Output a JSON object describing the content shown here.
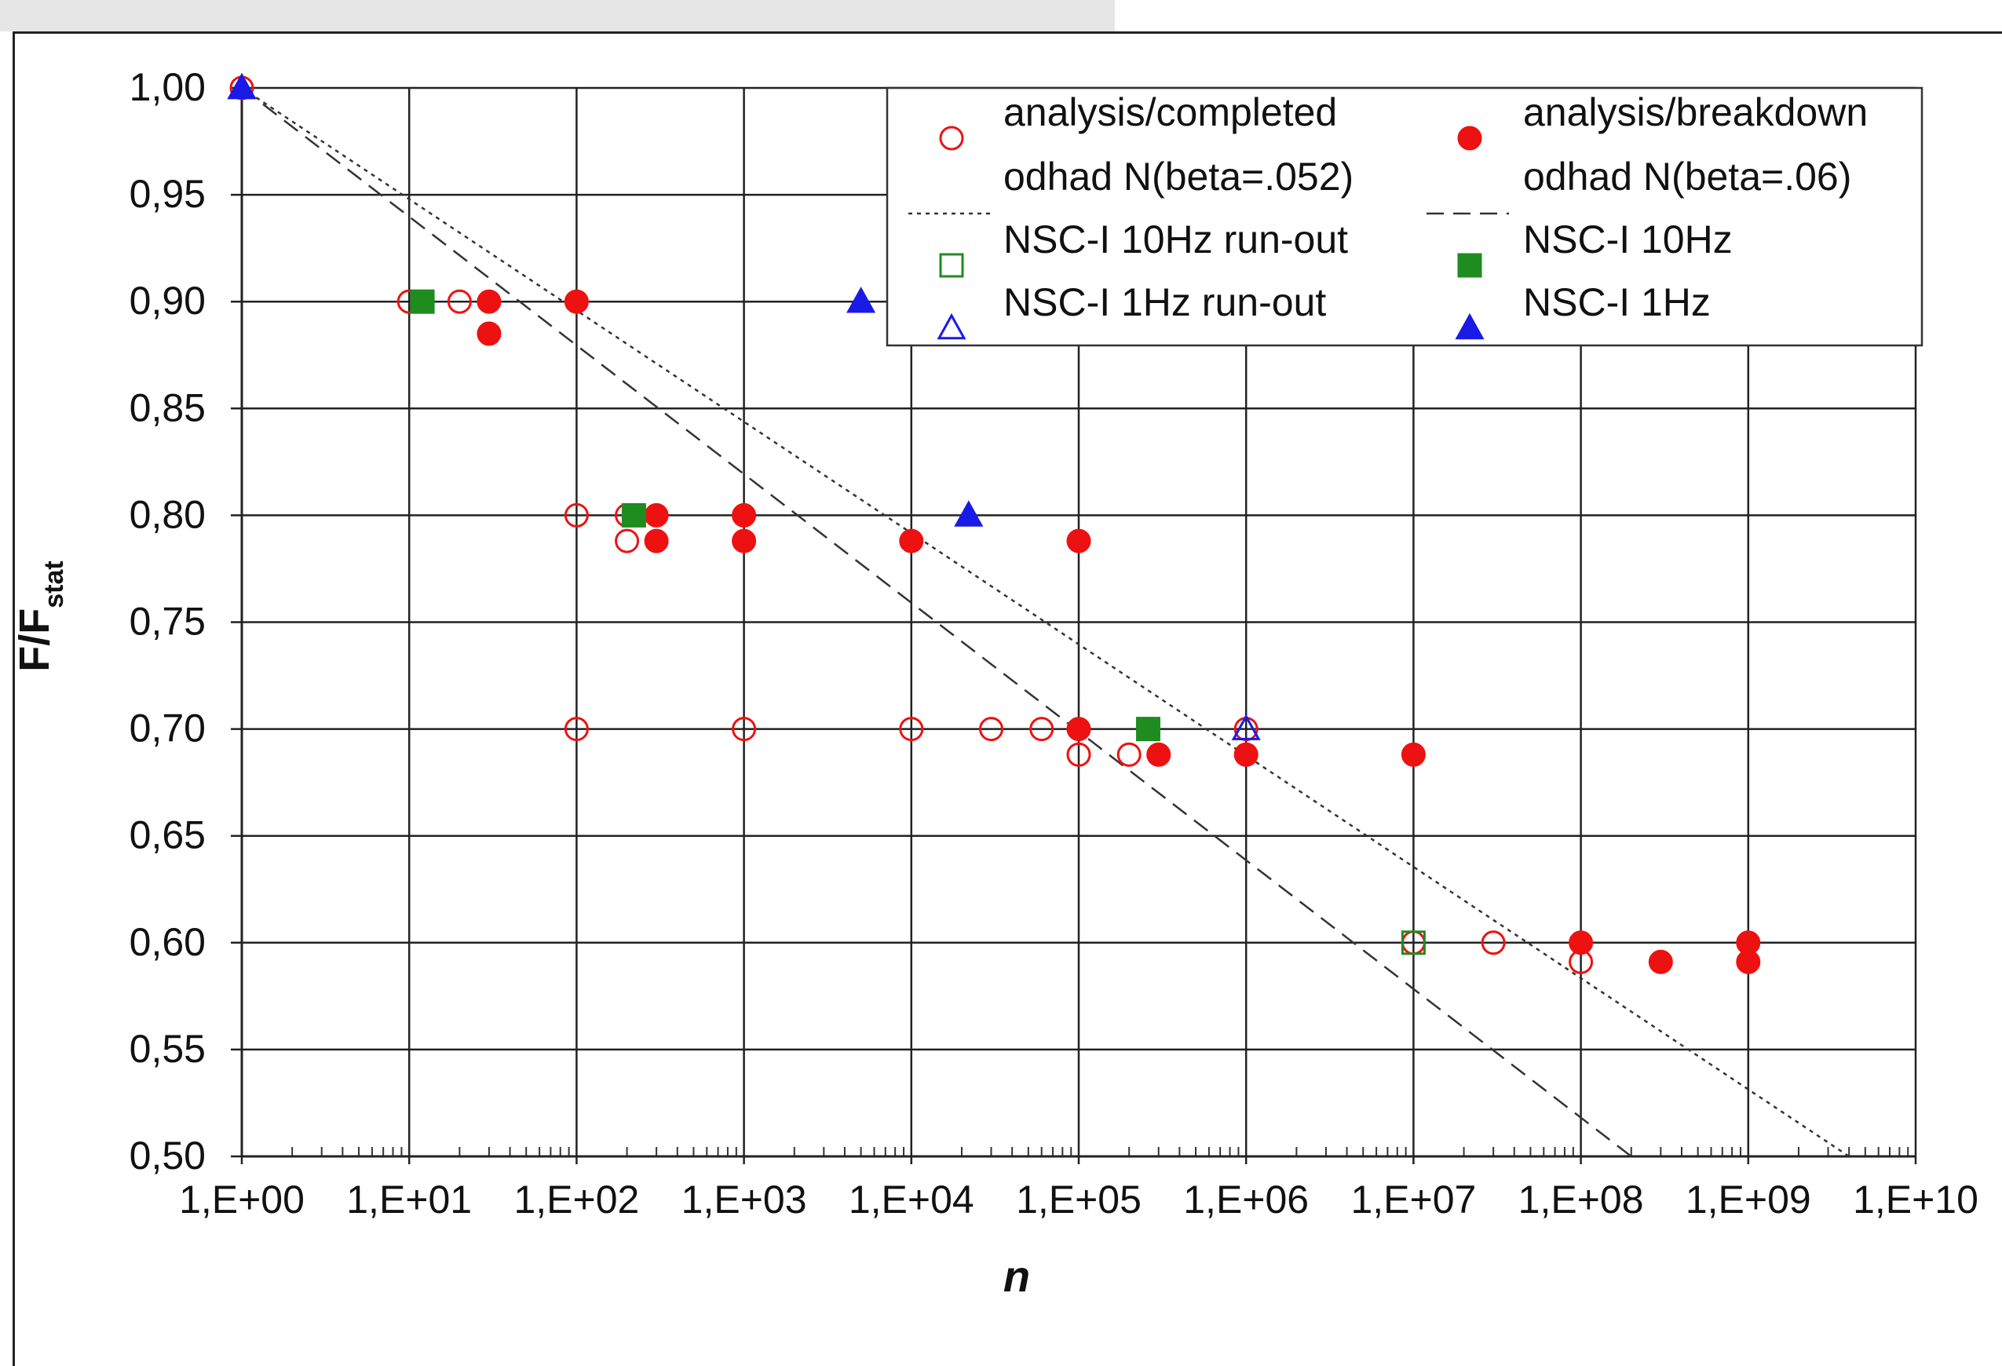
{
  "chart_data": {
    "type": "scatter",
    "xlabel": "n",
    "ylabel_main": "F/F",
    "ylabel_sub": "stat",
    "x_scale": "log",
    "xlim": [
      1,
      10000000000
    ],
    "ylim": [
      0.5,
      1.0
    ],
    "grid": true,
    "legend_position": "top-right",
    "x_tick_values": [
      1,
      10,
      100,
      1000,
      10000,
      100000,
      1000000,
      10000000,
      100000000,
      1000000000,
      10000000000
    ],
    "x_tick_labels": [
      "1,E+00",
      "1,E+01",
      "1,E+02",
      "1,E+03",
      "1,E+04",
      "1,E+05",
      "1,E+06",
      "1,E+07",
      "1,E+08",
      "1,E+09",
      "1,E+10"
    ],
    "y_tick_values": [
      0.5,
      0.55,
      0.6,
      0.65,
      0.7,
      0.75,
      0.8,
      0.85,
      0.9,
      0.95,
      1.0
    ],
    "y_tick_labels": [
      "0,50",
      "0,55",
      "0,60",
      "0,65",
      "0,70",
      "0,75",
      "0,80",
      "0,85",
      "0,90",
      "0,95",
      "1,00"
    ],
    "series": [
      {
        "name": "analysis/completed",
        "marker": "circle-open",
        "color": "#ee1111",
        "points": [
          [
            1,
            1.0
          ],
          [
            10,
            0.9
          ],
          [
            20,
            0.9
          ],
          [
            100,
            0.8
          ],
          [
            200,
            0.8
          ],
          [
            200,
            0.788
          ],
          [
            100,
            0.7
          ],
          [
            1000,
            0.7
          ],
          [
            10000,
            0.7
          ],
          [
            30000,
            0.7
          ],
          [
            60000,
            0.7
          ],
          [
            100000,
            0.688
          ],
          [
            200000,
            0.688
          ],
          [
            1000000,
            0.7
          ],
          [
            10000000,
            0.6
          ],
          [
            30000000,
            0.6
          ],
          [
            100000000,
            0.591
          ]
        ]
      },
      {
        "name": "analysis/breakdown",
        "marker": "circle-filled",
        "color": "#ee1111",
        "points": [
          [
            30,
            0.9
          ],
          [
            30,
            0.885
          ],
          [
            100,
            0.9
          ],
          [
            300,
            0.8
          ],
          [
            300,
            0.788
          ],
          [
            1000,
            0.8
          ],
          [
            1000,
            0.788
          ],
          [
            10000,
            0.788
          ],
          [
            100000,
            0.788
          ],
          [
            100000,
            0.7
          ],
          [
            300000,
            0.688
          ],
          [
            1000000,
            0.688
          ],
          [
            10000000,
            0.688
          ],
          [
            100000000,
            0.6
          ],
          [
            300000000,
            0.591
          ],
          [
            1000000000,
            0.6
          ],
          [
            1000000000,
            0.591
          ]
        ]
      },
      {
        "name": "odhad N(beta=.052)",
        "marker": "line-dotted",
        "color": "#333333",
        "beta": 0.052,
        "line": [
          [
            1,
            1.0
          ],
          [
            4000000000,
            0.5
          ]
        ]
      },
      {
        "name": "odhad N(beta=.06)",
        "marker": "line-dashed",
        "color": "#333333",
        "beta": 0.06,
        "line": [
          [
            1,
            1.0
          ],
          [
            200000000,
            0.5
          ]
        ]
      },
      {
        "name": "NSC-I 10Hz run-out",
        "marker": "square-open",
        "color": "#1e8c1e",
        "points": [
          [
            10000000,
            0.6
          ]
        ]
      },
      {
        "name": "NSC-I 10Hz",
        "marker": "square-filled",
        "color": "#1e8c1e",
        "points": [
          [
            12,
            0.9
          ],
          [
            220,
            0.8
          ],
          [
            260000,
            0.7
          ]
        ]
      },
      {
        "name": "NSC-I 1Hz run-out",
        "marker": "triangle-open",
        "color": "#1a1ae6",
        "points": [
          [
            1,
            1.0
          ],
          [
            1000000,
            0.7
          ]
        ]
      },
      {
        "name": "NSC-I 1Hz",
        "marker": "triangle-filled",
        "color": "#1a1ae6",
        "points": [
          [
            1,
            1.0
          ],
          [
            5000,
            0.9
          ],
          [
            22000,
            0.8
          ]
        ]
      }
    ]
  }
}
